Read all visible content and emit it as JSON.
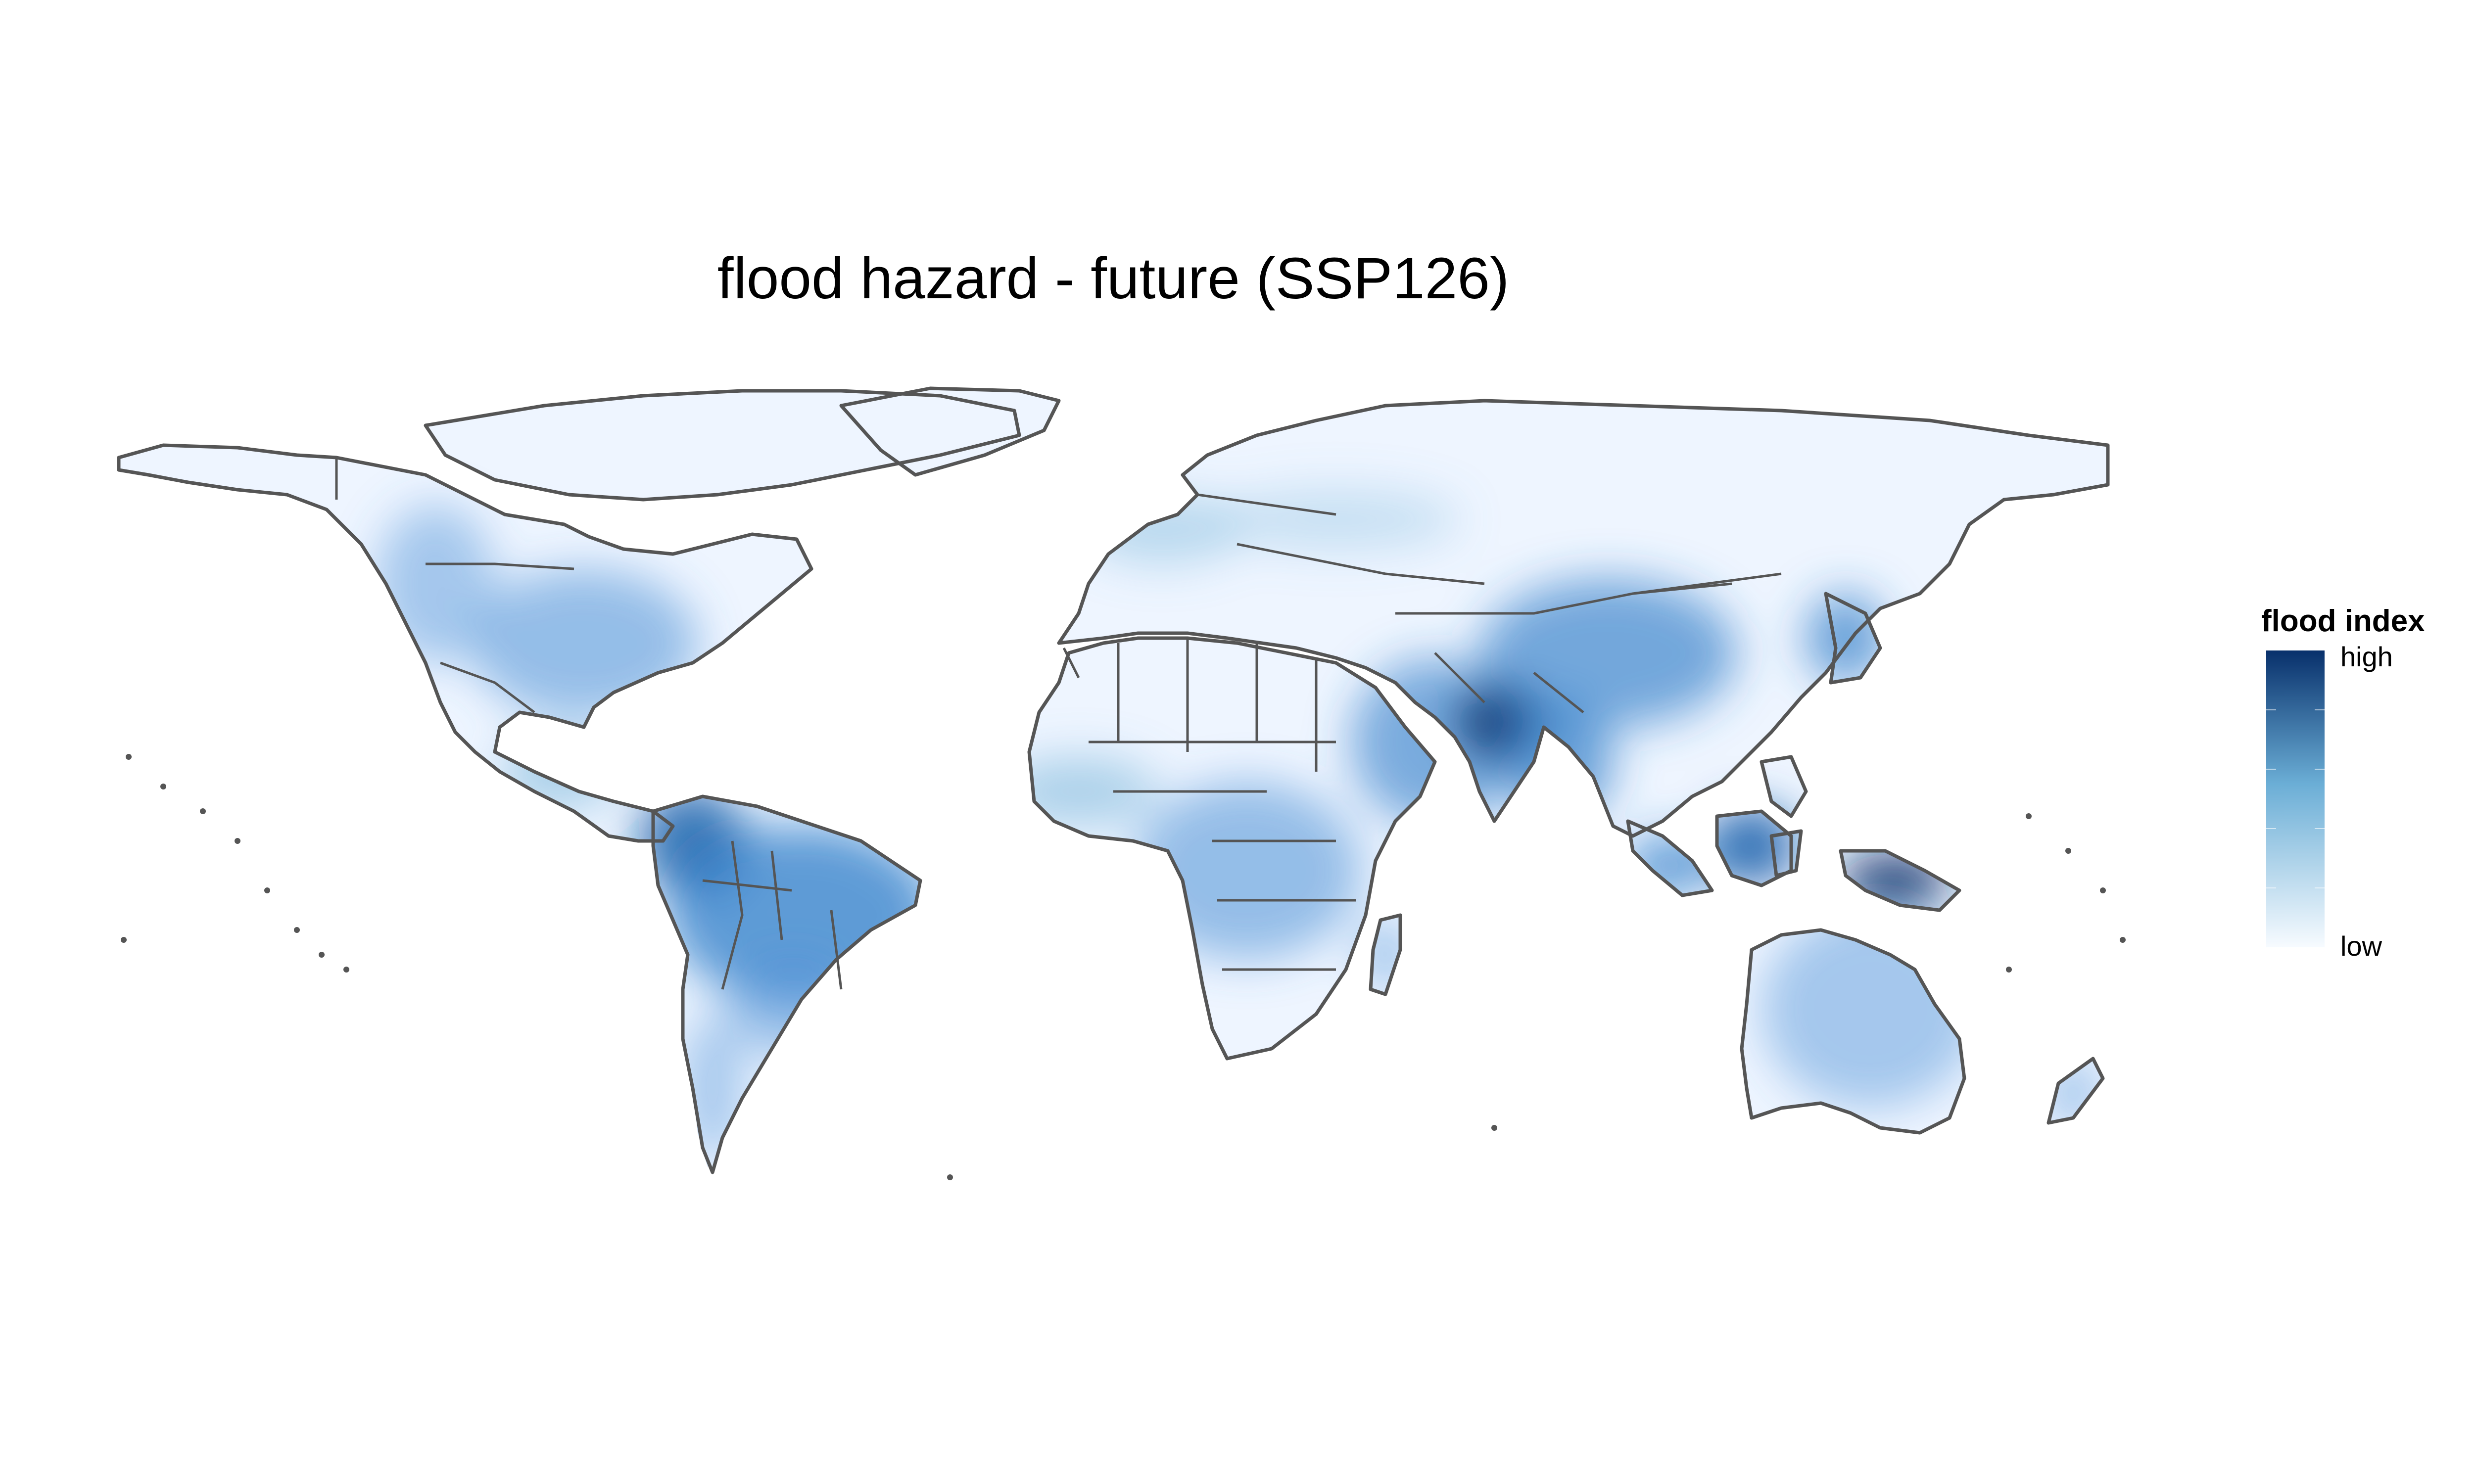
{
  "title": "flood hazard - future (SSP126)",
  "legend": {
    "title": "flood index",
    "high_label": "high",
    "low_label": "low",
    "color_low": "#f7fbff",
    "color_mid": "#6baed6",
    "color_high": "#08306b"
  },
  "colors": {
    "border": "#555555",
    "land_base": "#eef5ff",
    "background": "#ffffff"
  },
  "map": {
    "projection": "equirectangular",
    "hotspots": [
      {
        "name": "Bangladesh / Myanmar",
        "level": "high"
      },
      {
        "name": "New Guinea",
        "level": "high"
      },
      {
        "name": "Borneo",
        "level": "high"
      },
      {
        "name": "Southern China",
        "level": "medium-high"
      },
      {
        "name": "Amazon basin",
        "level": "medium-high"
      },
      {
        "name": "Colombia / Ecuador coast",
        "level": "high"
      },
      {
        "name": "Eastern United States",
        "level": "medium"
      },
      {
        "name": "Japan",
        "level": "medium-high"
      },
      {
        "name": "Central Africa",
        "level": "medium"
      },
      {
        "name": "Eastern Australia",
        "level": "medium"
      },
      {
        "name": "Indochina",
        "level": "medium-high"
      },
      {
        "name": "Pacific Northwest",
        "level": "medium"
      }
    ]
  }
}
